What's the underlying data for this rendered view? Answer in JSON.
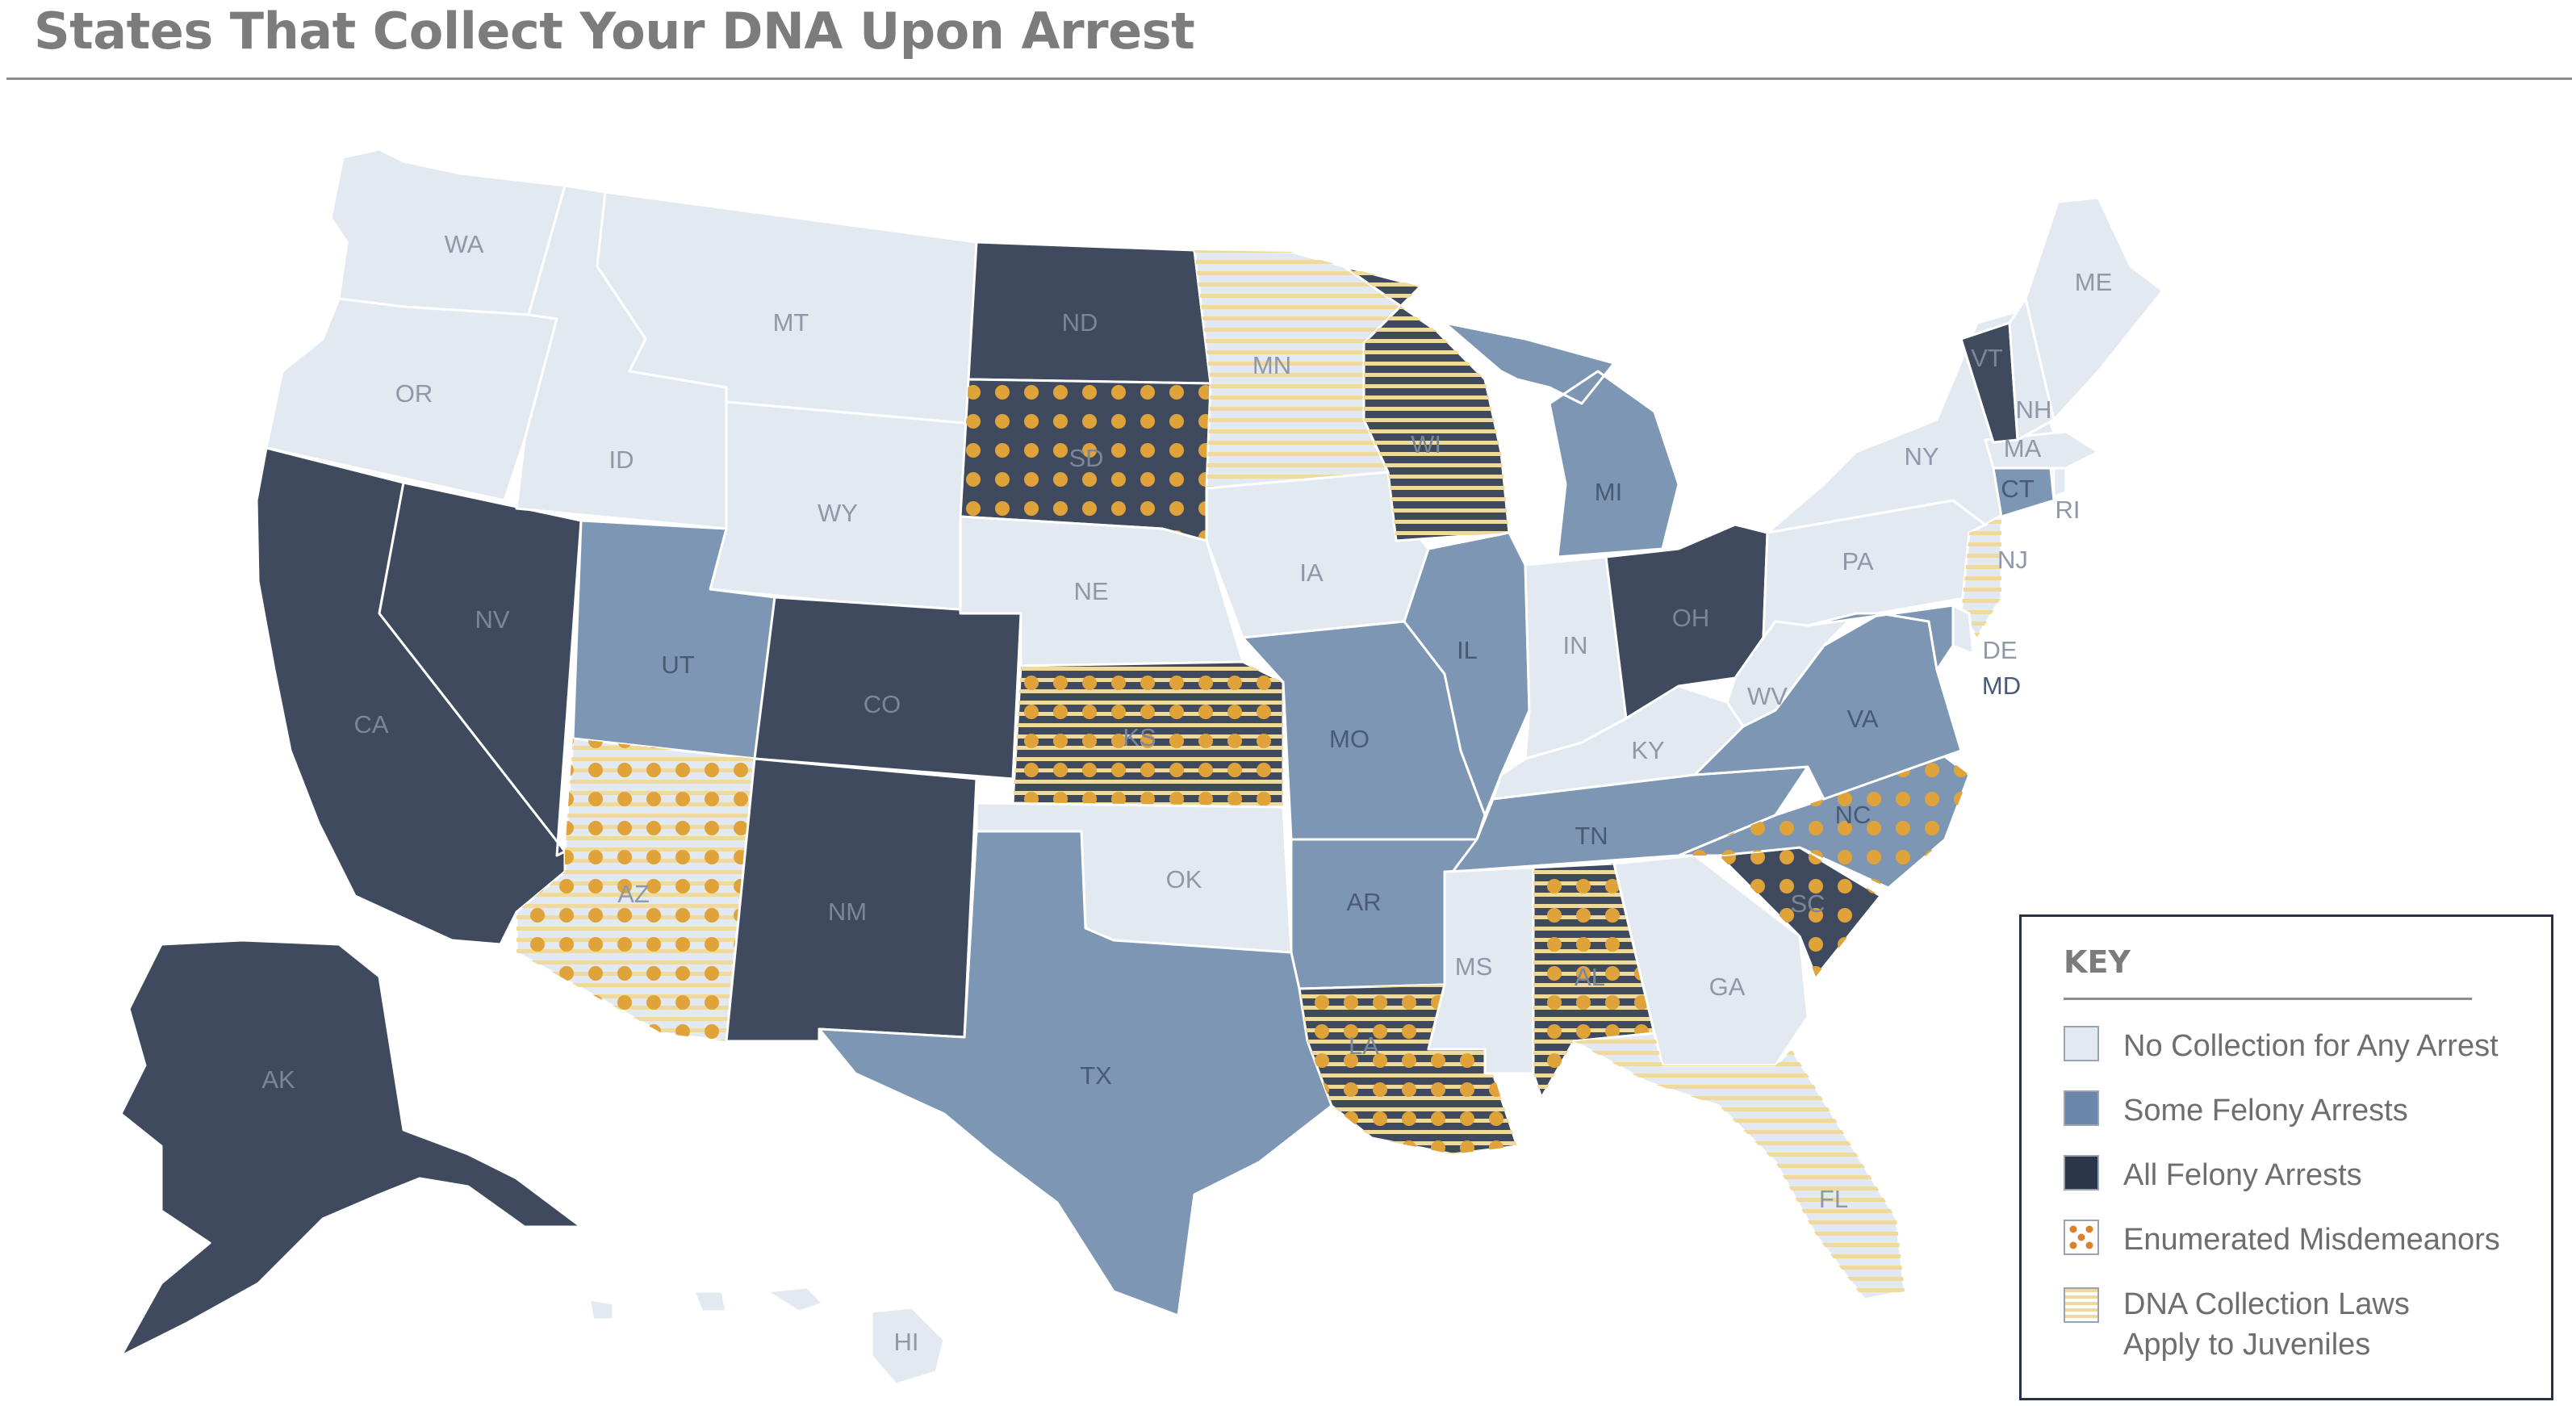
{
  "title": "States That Collect Your DNA Upon Arrest",
  "colors": {
    "none": "#e3e9f1",
    "some": "#7d96b3",
    "all": "#3f4a5e",
    "dot": "#e0a33a",
    "stripe": "#f0d9a0"
  },
  "categories": {
    "none": "No Collection for Any Arrest",
    "some": "Some Felony Arrests",
    "all": "All Felony Arrests",
    "misdemeanor": "Enumerated Misdemeanors",
    "juvenile": "DNA Collection Laws Apply to Juveniles"
  },
  "states": [
    {
      "abbr": "WA",
      "category": "none"
    },
    {
      "abbr": "OR",
      "category": "none"
    },
    {
      "abbr": "CA",
      "category": "all"
    },
    {
      "abbr": "NV",
      "category": "all"
    },
    {
      "abbr": "ID",
      "category": "none"
    },
    {
      "abbr": "MT",
      "category": "none"
    },
    {
      "abbr": "WY",
      "category": "none"
    },
    {
      "abbr": "UT",
      "category": "some"
    },
    {
      "abbr": "AZ",
      "category": "none",
      "misdemeanors": true,
      "juveniles": true
    },
    {
      "abbr": "CO",
      "category": "all"
    },
    {
      "abbr": "NM",
      "category": "all"
    },
    {
      "abbr": "ND",
      "category": "all"
    },
    {
      "abbr": "SD",
      "category": "all",
      "misdemeanors": true
    },
    {
      "abbr": "NE",
      "category": "none"
    },
    {
      "abbr": "KS",
      "category": "all",
      "misdemeanors": true,
      "juveniles": true
    },
    {
      "abbr": "OK",
      "category": "none"
    },
    {
      "abbr": "TX",
      "category": "some"
    },
    {
      "abbr": "MN",
      "category": "none",
      "juveniles": true
    },
    {
      "abbr": "IA",
      "category": "none"
    },
    {
      "abbr": "MO",
      "category": "some"
    },
    {
      "abbr": "AR",
      "category": "some"
    },
    {
      "abbr": "LA",
      "category": "all",
      "misdemeanors": true,
      "juveniles": true
    },
    {
      "abbr": "WI",
      "category": "all",
      "juveniles": true
    },
    {
      "abbr": "IL",
      "category": "some"
    },
    {
      "abbr": "MI",
      "category": "some"
    },
    {
      "abbr": "IN",
      "category": "none"
    },
    {
      "abbr": "OH",
      "category": "all"
    },
    {
      "abbr": "KY",
      "category": "none"
    },
    {
      "abbr": "TN",
      "category": "some"
    },
    {
      "abbr": "MS",
      "category": "none"
    },
    {
      "abbr": "AL",
      "category": "all",
      "misdemeanors": true,
      "juveniles": true
    },
    {
      "abbr": "GA",
      "category": "none"
    },
    {
      "abbr": "FL",
      "category": "none",
      "juveniles": true
    },
    {
      "abbr": "SC",
      "category": "all",
      "misdemeanors": true
    },
    {
      "abbr": "NC",
      "category": "some",
      "misdemeanors": true
    },
    {
      "abbr": "VA",
      "category": "some"
    },
    {
      "abbr": "WV",
      "category": "none"
    },
    {
      "abbr": "PA",
      "category": "none"
    },
    {
      "abbr": "NY",
      "category": "none"
    },
    {
      "abbr": "NJ",
      "category": "none",
      "juveniles": true
    },
    {
      "abbr": "DE",
      "category": "none"
    },
    {
      "abbr": "MD",
      "category": "some"
    },
    {
      "abbr": "CT",
      "category": "some"
    },
    {
      "abbr": "RI",
      "category": "none"
    },
    {
      "abbr": "MA",
      "category": "none"
    },
    {
      "abbr": "VT",
      "category": "all"
    },
    {
      "abbr": "NH",
      "category": "none"
    },
    {
      "abbr": "ME",
      "category": "none"
    },
    {
      "abbr": "AK",
      "category": "all"
    },
    {
      "abbr": "HI",
      "category": "none"
    }
  ],
  "key": {
    "title": "KEY",
    "items": [
      {
        "swatch": "none",
        "label": "No Collection for Any Arrest"
      },
      {
        "swatch": "some",
        "label": "Some Felony Arrests"
      },
      {
        "swatch": "all",
        "label": "All Felony Arrests"
      },
      {
        "swatch": "misdemeanor",
        "label": "Enumerated Misdemeanors"
      },
      {
        "swatch": "juvenile",
        "label": "DNA Collection Laws Apply to Juveniles"
      }
    ]
  }
}
